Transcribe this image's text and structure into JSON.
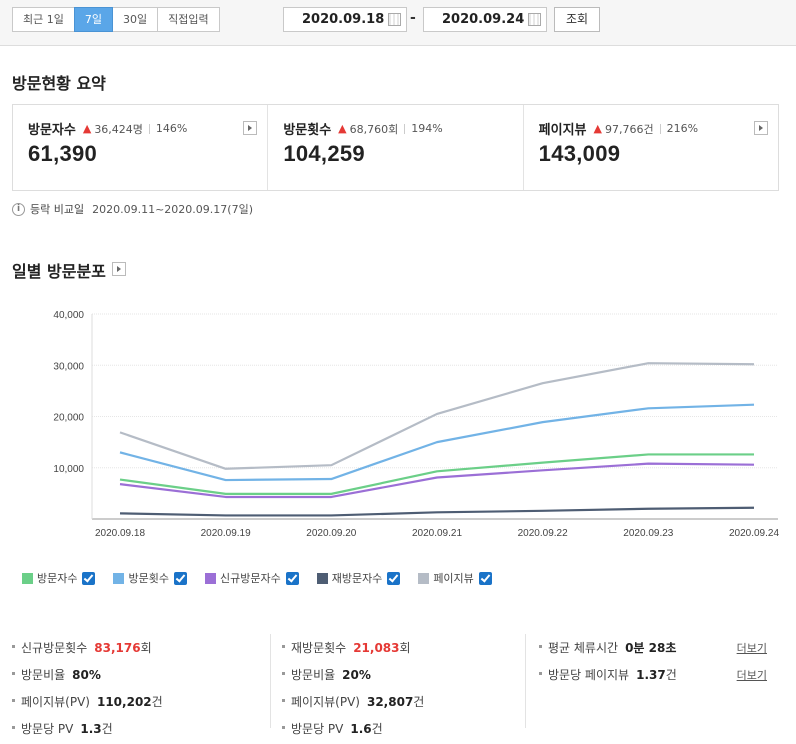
{
  "toolbar": {
    "ranges": [
      "최근 1일",
      "7일",
      "30일",
      "직접입력"
    ],
    "active_range": "7일",
    "start_date": "2020.09.18",
    "end_date": "2020.09.24",
    "date_separator": "-",
    "search_label": "조회"
  },
  "summary": {
    "title": "방문현황 요약",
    "cards": [
      {
        "label": "방문자수",
        "delta": "36,424명",
        "pct": "146%",
        "value": "61,390"
      },
      {
        "label": "방문횟수",
        "delta": "68,760회",
        "pct": "194%",
        "value": "104,259"
      },
      {
        "label": "페이지뷰",
        "delta": "97,766건",
        "pct": "216%",
        "value": "143,009"
      }
    ],
    "compare_label": "등락 비교일",
    "compare_range": "2020.09.11~2020.09.17(7일)"
  },
  "daily": {
    "title": "일별 방문분포"
  },
  "colors": {
    "visitors": "#6bcf88",
    "visits": "#72b3e6",
    "new_visitors": "#9b6fd6",
    "returning_visitors": "#4e5d73",
    "pageviews": "#b5bcc6",
    "accent": "#5aa6e8",
    "up": "#e53935"
  },
  "chart_data": {
    "type": "line",
    "categories": [
      "2020.09.18",
      "2020.09.19",
      "2020.09.20",
      "2020.09.21",
      "2020.09.22",
      "2020.09.23",
      "2020.09.24"
    ],
    "y_ticks": [
      "40,000",
      "30,000",
      "20,000",
      "10,000"
    ],
    "ylim": [
      0,
      40000
    ],
    "grid": true,
    "legend_position": "bottom-left",
    "series": [
      {
        "name": "방문자수",
        "color": "#6bcf88",
        "values": [
          7700,
          4900,
          4900,
          9300,
          11000,
          12600,
          12600
        ]
      },
      {
        "name": "방문횟수",
        "color": "#72b3e6",
        "values": [
          13000,
          7600,
          7800,
          15000,
          18900,
          21600,
          22300
        ]
      },
      {
        "name": "신규방문자수",
        "color": "#9b6fd6",
        "values": [
          6800,
          4300,
          4300,
          8100,
          9500,
          10800,
          10600
        ]
      },
      {
        "name": "재방문자수",
        "color": "#4e5d73",
        "values": [
          1100,
          700,
          700,
          1300,
          1600,
          2000,
          2200
        ]
      },
      {
        "name": "페이지뷰",
        "color": "#b5bcc6",
        "values": [
          16900,
          9800,
          10500,
          20500,
          26500,
          30400,
          30200
        ]
      }
    ]
  },
  "stats": {
    "col1": [
      {
        "label": "신규방문횟수",
        "value": "83,176",
        "unit": "회",
        "red": true
      },
      {
        "label": "방문비율",
        "value": "80%",
        "unit": "",
        "red": false
      },
      {
        "label": "페이지뷰(PV)",
        "value": "110,202",
        "unit": "건",
        "red": false
      },
      {
        "label": "방문당 PV",
        "value": "1.3",
        "unit": "건",
        "red": false
      }
    ],
    "col2": [
      {
        "label": "재방문횟수",
        "value": "21,083",
        "unit": "회",
        "red": true
      },
      {
        "label": "방문비율",
        "value": "20%",
        "unit": "",
        "red": false
      },
      {
        "label": "페이지뷰(PV)",
        "value": "32,807",
        "unit": "건",
        "red": false
      },
      {
        "label": "방문당 PV",
        "value": "1.6",
        "unit": "건",
        "red": false
      }
    ],
    "col3": [
      {
        "label": "평균 체류시간",
        "value": "0분 28초",
        "unit": "",
        "red": false,
        "link": "더보기"
      },
      {
        "label": "방문당 페이지뷰",
        "value": "1.37",
        "unit": "건",
        "red": false,
        "link": "더보기"
      }
    ]
  }
}
